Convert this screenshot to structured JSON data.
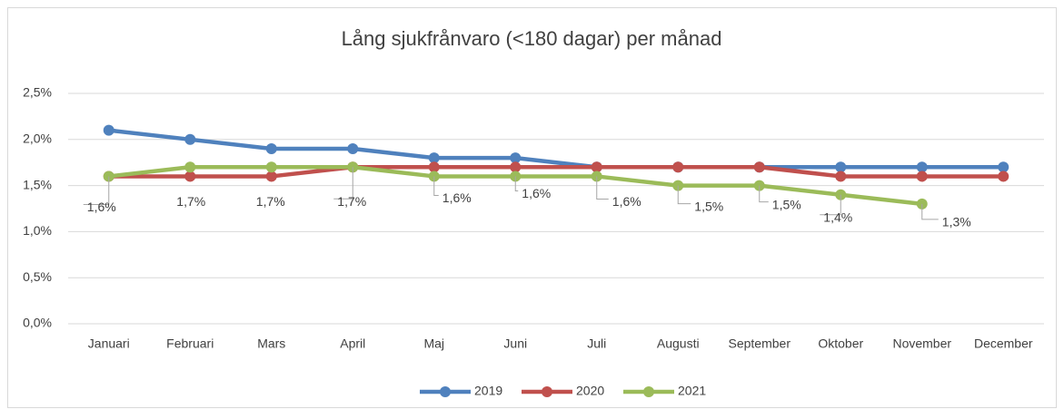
{
  "chart_data": {
    "type": "line",
    "title": "Lång sjukfrånvaro (<180 dagar) per månad",
    "categories": [
      "Januari",
      "Februari",
      "Mars",
      "April",
      "Maj",
      "Juni",
      "Juli",
      "Augusti",
      "September",
      "Oktober",
      "November",
      "December"
    ],
    "series": [
      {
        "name": "2019",
        "color": "#4f81bd",
        "values": [
          2.1,
          2.0,
          1.9,
          1.9,
          1.8,
          1.8,
          1.7,
          1.7,
          1.7,
          1.7,
          1.7,
          1.7
        ]
      },
      {
        "name": "2020",
        "color": "#c0504d",
        "values": [
          1.6,
          1.6,
          1.6,
          1.7,
          1.7,
          1.7,
          1.7,
          1.7,
          1.7,
          1.6,
          1.6,
          1.6
        ]
      },
      {
        "name": "2021",
        "color": "#9bbb59",
        "values": [
          1.6,
          1.7,
          1.7,
          1.7,
          1.6,
          1.6,
          1.6,
          1.5,
          1.5,
          1.4,
          1.3,
          null
        ],
        "value_labels": [
          "1,6%",
          "1,7%",
          "1,7%",
          "1,7%",
          "1,6%",
          "1,6%",
          "1,6%",
          "1,5%",
          "1,5%",
          "1,4%",
          "1,3%",
          null
        ]
      }
    ],
    "ylim": [
      0,
      2.5
    ],
    "yticks": [
      {
        "value": 0,
        "label": "0,0%"
      },
      {
        "value": 0.5,
        "label": "0,5%"
      },
      {
        "value": 1.0,
        "label": "1,0%"
      },
      {
        "value": 1.5,
        "label": "1,5%"
      },
      {
        "value": 2.0,
        "label": "2,0%"
      },
      {
        "value": 2.5,
        "label": "2,5%"
      }
    ],
    "grid": true,
    "legend": "bottom"
  }
}
